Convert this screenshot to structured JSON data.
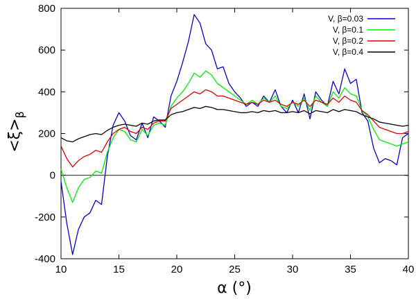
{
  "chart_data": {
    "type": "line",
    "title": "",
    "xlabel": "α (°)",
    "ylabel_main": "<ξ>",
    "ylabel_sub": "β",
    "xlim": [
      10,
      40
    ],
    "ylim": [
      -400,
      800
    ],
    "xticks": [
      10,
      15,
      20,
      25,
      30,
      35,
      40
    ],
    "yticks": [
      -400,
      -200,
      0,
      200,
      400,
      600,
      800
    ],
    "zero_line": true,
    "grid": false,
    "legend_position": "top-right",
    "series": [
      {
        "name": "V, β=0.03",
        "color": "#0000cc",
        "x": [
          10,
          10.5,
          11,
          11.5,
          12,
          12.5,
          13,
          13.5,
          14,
          14.5,
          15,
          15.5,
          16,
          16.5,
          17,
          17.5,
          18,
          18.5,
          19,
          19.5,
          20,
          20.5,
          21,
          21.5,
          22,
          22.5,
          23,
          23.5,
          24,
          24.5,
          25,
          25.5,
          26,
          26.5,
          27,
          27.5,
          28,
          28.5,
          29,
          29.5,
          30,
          30.5,
          31,
          31.5,
          32,
          32.5,
          33,
          33.5,
          34,
          34.5,
          35,
          35.5,
          36,
          36.5,
          37,
          37.5,
          38,
          38.5,
          39,
          39.5,
          40
        ],
        "y": [
          -30,
          -230,
          -380,
          -260,
          -200,
          -180,
          -120,
          -140,
          90,
          240,
          300,
          260,
          190,
          170,
          250,
          180,
          280,
          260,
          230,
          380,
          450,
          540,
          640,
          770,
          730,
          630,
          600,
          510,
          520,
          440,
          400,
          370,
          330,
          350,
          330,
          380,
          350,
          410,
          330,
          300,
          360,
          300,
          390,
          270,
          400,
          360,
          330,
          450,
          390,
          510,
          440,
          460,
          300,
          260,
          130,
          60,
          80,
          70,
          50,
          180,
          200
        ]
      },
      {
        "name": "V, β=0.1",
        "color": "#00ee00",
        "x": [
          10,
          10.5,
          11,
          11.5,
          12,
          12.5,
          13,
          13.5,
          14,
          14.5,
          15,
          15.5,
          16,
          16.5,
          17,
          17.5,
          18,
          18.5,
          19,
          19.5,
          20,
          20.5,
          21,
          21.5,
          22,
          22.5,
          23,
          23.5,
          24,
          24.5,
          25,
          25.5,
          26,
          26.5,
          27,
          27.5,
          28,
          28.5,
          29,
          29.5,
          30,
          30.5,
          31,
          31.5,
          32,
          32.5,
          33,
          33.5,
          34,
          34.5,
          35,
          35.5,
          36,
          36.5,
          37,
          37.5,
          38,
          38.5,
          39,
          39.5,
          40
        ],
        "y": [
          30,
          -60,
          -130,
          -60,
          -20,
          -10,
          20,
          10,
          110,
          180,
          220,
          210,
          170,
          160,
          220,
          190,
          240,
          250,
          240,
          330,
          370,
          400,
          440,
          490,
          470,
          500,
          480,
          440,
          420,
          400,
          380,
          360,
          340,
          360,
          340,
          370,
          350,
          380,
          330,
          320,
          350,
          330,
          370,
          310,
          380,
          350,
          330,
          400,
          370,
          420,
          390,
          380,
          310,
          280,
          220,
          170,
          160,
          150,
          140,
          150,
          160
        ]
      },
      {
        "name": "V, β=0.2",
        "color": "#dd0000",
        "x": [
          10,
          10.5,
          11,
          11.5,
          12,
          12.5,
          13,
          13.5,
          14,
          14.5,
          15,
          15.5,
          16,
          16.5,
          17,
          17.5,
          18,
          18.5,
          19,
          19.5,
          20,
          20.5,
          21,
          21.5,
          22,
          22.5,
          23,
          23.5,
          24,
          24.5,
          25,
          25.5,
          26,
          26.5,
          27,
          27.5,
          28,
          28.5,
          29,
          29.5,
          30,
          30.5,
          31,
          31.5,
          32,
          32.5,
          33,
          33.5,
          34,
          34.5,
          35,
          35.5,
          36,
          36.5,
          37,
          37.5,
          38,
          38.5,
          39,
          39.5,
          40
        ],
        "y": [
          140,
          80,
          40,
          70,
          90,
          100,
          120,
          110,
          160,
          200,
          220,
          230,
          210,
          200,
          230,
          220,
          250,
          260,
          260,
          320,
          340,
          360,
          380,
          400,
          390,
          410,
          400,
          380,
          380,
          370,
          360,
          350,
          340,
          350,
          340,
          360,
          350,
          360,
          340,
          330,
          350,
          340,
          360,
          330,
          360,
          350,
          340,
          370,
          350,
          380,
          360,
          350,
          310,
          290,
          260,
          230,
          220,
          210,
          200,
          200,
          210
        ]
      },
      {
        "name": "V, β=0.4",
        "color": "#000000",
        "x": [
          10,
          10.5,
          11,
          11.5,
          12,
          12.5,
          13,
          13.5,
          14,
          14.5,
          15,
          15.5,
          16,
          16.5,
          17,
          17.5,
          18,
          18.5,
          19,
          19.5,
          20,
          20.5,
          21,
          21.5,
          22,
          22.5,
          23,
          23.5,
          24,
          24.5,
          25,
          25.5,
          26,
          26.5,
          27,
          27.5,
          28,
          28.5,
          29,
          29.5,
          30,
          30.5,
          31,
          31.5,
          32,
          32.5,
          33,
          33.5,
          34,
          34.5,
          35,
          35.5,
          36,
          36.5,
          37,
          37.5,
          38,
          38.5,
          39,
          39.5,
          40
        ],
        "y": [
          180,
          165,
          160,
          175,
          185,
          195,
          200,
          195,
          215,
          230,
          240,
          245,
          240,
          235,
          250,
          245,
          260,
          265,
          265,
          290,
          300,
          305,
          315,
          325,
          320,
          330,
          325,
          315,
          315,
          310,
          305,
          300,
          300,
          305,
          300,
          310,
          305,
          310,
          300,
          300,
          305,
          300,
          310,
          295,
          310,
          305,
          300,
          315,
          305,
          315,
          310,
          305,
          290,
          280,
          270,
          255,
          250,
          245,
          240,
          235,
          240
        ]
      }
    ]
  }
}
